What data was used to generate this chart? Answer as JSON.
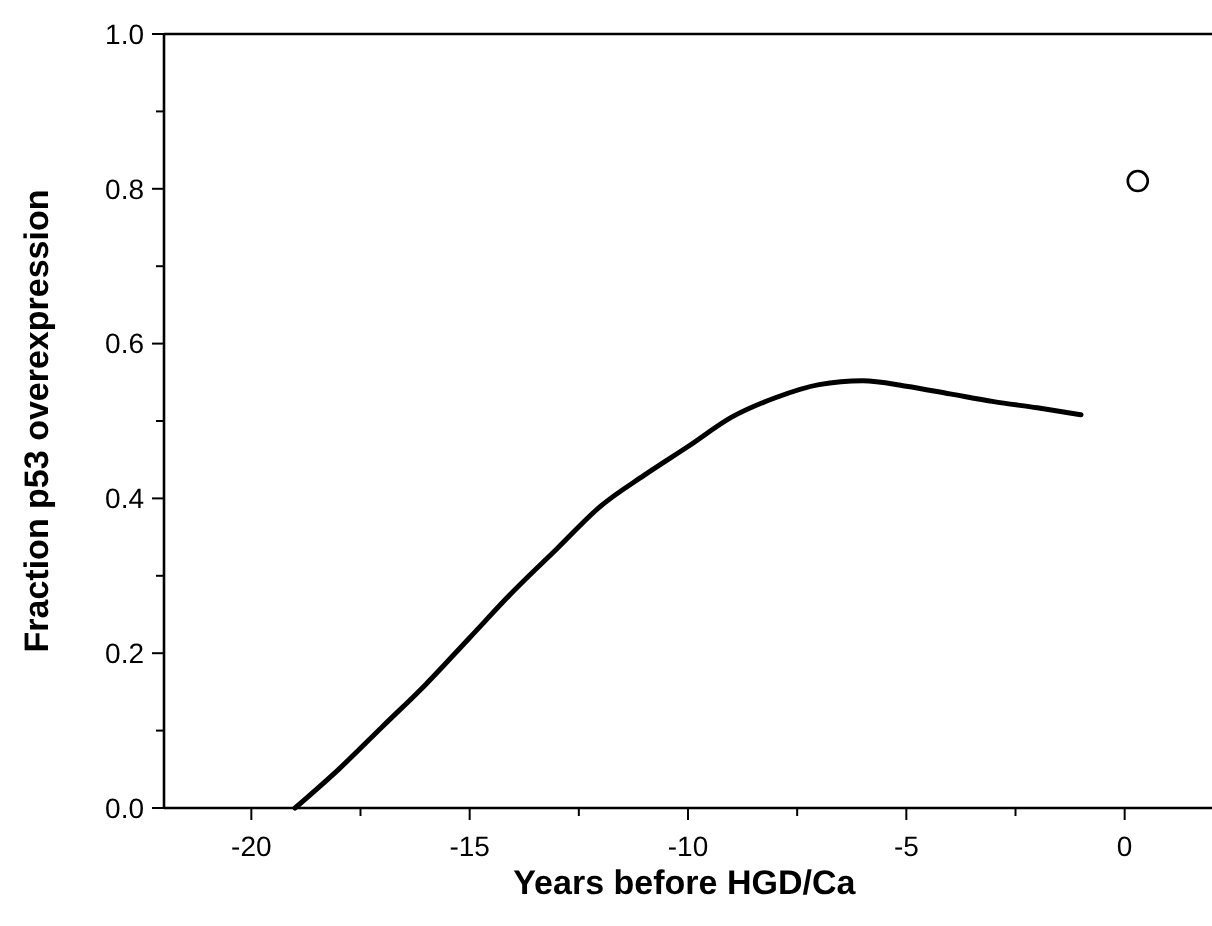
{
  "chart_data": {
    "type": "line",
    "xlabel": "Years before HGD/Ca",
    "ylabel": "Fraction p53 overexpression",
    "xlim": [
      -22,
      2
    ],
    "ylim": [
      0,
      1
    ],
    "xticks": [
      -20,
      {
        "value": -17.5,
        "label": null
      },
      -15,
      {
        "value": -12.5,
        "label": null
      },
      -10,
      {
        "value": -7.5,
        "label": null
      },
      -5,
      {
        "value": -2.5,
        "label": null
      },
      0
    ],
    "yticks": [
      {
        "value": 0,
        "label": "0.0"
      },
      {
        "value": 0.1,
        "label": null
      },
      0.2,
      {
        "value": 0.3,
        "label": null
      },
      0.4,
      {
        "value": 0.5,
        "label": null
      },
      0.6,
      {
        "value": 0.7,
        "label": null
      },
      0.8,
      {
        "value": 0.9,
        "label": null
      },
      {
        "value": 1,
        "label": "1.0"
      }
    ],
    "grid": false,
    "series": [
      {
        "color": "#000000",
        "marker": "none",
        "line_style": "solid",
        "x": [
          -19,
          -18,
          -17,
          -16,
          -15,
          -14,
          -13,
          -12,
          -11,
          -10,
          -9,
          -8,
          -7,
          -6,
          -5,
          -4,
          -3,
          -2,
          -1
        ],
        "values": [
          0,
          0.05,
          0.105,
          0.16,
          0.22,
          0.28,
          0.335,
          0.39,
          0.43,
          0.467,
          0.505,
          0.53,
          0.547,
          0.552,
          0.545,
          0.535,
          0.525,
          0.517,
          0.508
        ]
      },
      {
        "type": "scatter",
        "color": "#000000",
        "marker": "circle",
        "x": [
          0.3
        ],
        "values": [
          0.81
        ]
      }
    ]
  }
}
